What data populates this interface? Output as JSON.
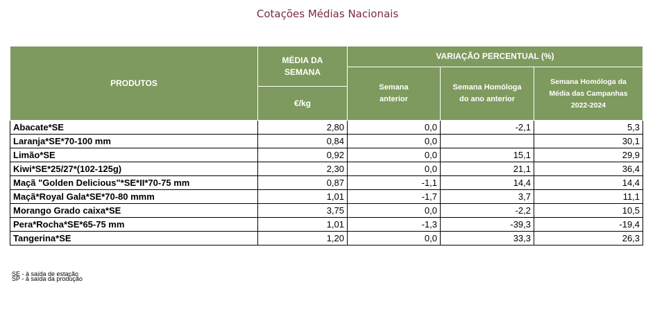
{
  "title": "Cotações Médias Nacionais",
  "headers": {
    "produtos": "PRODUTOS",
    "media_semana": "MÉDIA DA SEMANA",
    "unit": "€/kg",
    "variacao": "VARIAÇÃO PERCENTUAL (%)",
    "semana_anterior": "Semana anterior",
    "semana_homologa_ano": "Semana Homóloga do ano anterior",
    "semana_homologa_media": "Semana Homóloga da Média das Campanhas 2022-2024"
  },
  "rows": [
    {
      "produto": "Abacate*SE",
      "media": "2,80",
      "anterior": "0,0",
      "homologa_ano": "-2,1",
      "homologa_media": "5,3"
    },
    {
      "produto": "Laranja*SE*70-100 mm",
      "media": "0,84",
      "anterior": "0,0",
      "homologa_ano": "",
      "homologa_media": "30,1"
    },
    {
      "produto": "Limão*SE",
      "media": "0,92",
      "anterior": "0,0",
      "homologa_ano": "15,1",
      "homologa_media": "29,9"
    },
    {
      "produto": "Kiwi*SE*25/27*(102-125g)",
      "media": "2,30",
      "anterior": "0,0",
      "homologa_ano": "21,1",
      "homologa_media": "36,4"
    },
    {
      "produto": "Maçã \"Golden Delicious\"*SE*II*70-75 mm",
      "media": "0,87",
      "anterior": "-1,1",
      "homologa_ano": "14,4",
      "homologa_media": "14,4"
    },
    {
      "produto": "Maçã*Royal Gala*SE*70-80 mmm",
      "media": "1,01",
      "anterior": "-1,7",
      "homologa_ano": "3,7",
      "homologa_media": "11,1"
    },
    {
      "produto": "Morango Grado caixa*SE",
      "media": "3,75",
      "anterior": "0,0",
      "homologa_ano": "-2,2",
      "homologa_media": "10,5"
    },
    {
      "produto": "Pera*Rocha*SE*65-75 mm",
      "media": "1,01",
      "anterior": "-1,3",
      "homologa_ano": "-39,3",
      "homologa_media": "-19,4"
    },
    {
      "produto": "Tangerina*SE",
      "media": "1,20",
      "anterior": "0,0",
      "homologa_ano": "33,3",
      "homologa_media": "26,3"
    }
  ],
  "footnotes": [
    "SE - à saída de estação",
    "SP - à saída da produção"
  ]
}
